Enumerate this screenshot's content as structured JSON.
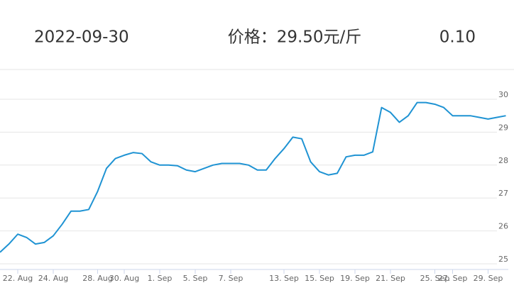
{
  "header": {
    "date": "2022-09-30",
    "price": "价格：29.50元/斤",
    "change": "0.10"
  },
  "chart_data": {
    "type": "line",
    "categories": [
      null,
      null,
      "22. Aug",
      null,
      null,
      null,
      "24. Aug",
      null,
      null,
      null,
      null,
      "28. Aug",
      null,
      null,
      "30. Aug",
      null,
      null,
      null,
      "1. Sep",
      null,
      null,
      null,
      "5. Sep",
      null,
      null,
      null,
      "7. Sep",
      null,
      null,
      null,
      null,
      null,
      "13. Sep",
      null,
      null,
      null,
      "15. Sep",
      null,
      null,
      null,
      "19. Sep",
      null,
      null,
      null,
      "21. Sep",
      null,
      null,
      null,
      null,
      "25. Sep",
      null,
      "27. Sep",
      null,
      null,
      null,
      "29. Sep",
      null,
      null
    ],
    "series": [
      {
        "name": "价格",
        "color": "#1f93d3",
        "values": [
          25.35,
          25.6,
          25.9,
          25.8,
          25.6,
          25.65,
          25.85,
          26.2,
          26.6,
          26.6,
          26.65,
          27.2,
          27.9,
          28.2,
          28.3,
          28.38,
          28.35,
          28.1,
          28.0,
          28.0,
          27.98,
          27.85,
          27.8,
          27.9,
          28.0,
          28.05,
          28.05,
          28.05,
          28.0,
          27.85,
          27.85,
          28.2,
          28.5,
          28.85,
          28.8,
          28.1,
          27.8,
          27.7,
          27.75,
          28.25,
          28.3,
          28.3,
          28.4,
          29.75,
          29.6,
          29.3,
          29.5,
          29.9,
          29.9,
          29.85,
          29.75,
          29.5,
          29.5,
          29.5,
          29.45,
          29.4,
          29.45,
          29.5
        ]
      }
    ],
    "ylim": [
      25,
      30
    ],
    "yticks": [
      25,
      26,
      27,
      28,
      29,
      30
    ],
    "grid": true
  }
}
